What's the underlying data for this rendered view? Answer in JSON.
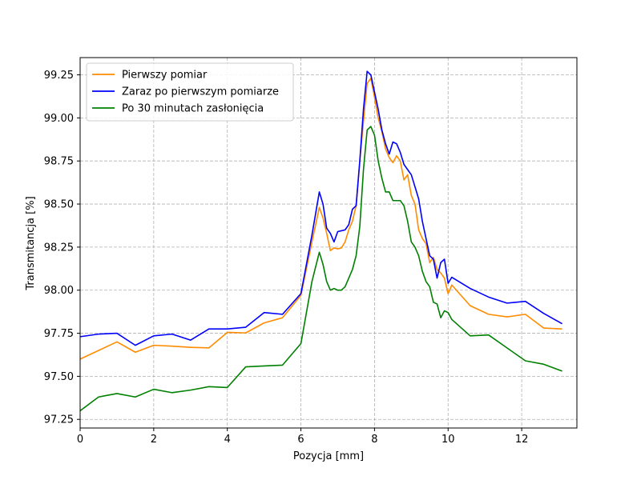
{
  "chart_data": {
    "type": "line",
    "xlabel": "Pozycja [mm]",
    "ylabel": "Transmitancja [%]",
    "xlim": [
      0,
      13.5
    ],
    "ylim": [
      97.2,
      99.35
    ],
    "xticks": [
      0,
      2,
      4,
      6,
      8,
      10,
      12
    ],
    "xtick_labels": [
      "0",
      "2",
      "4",
      "6",
      "8",
      "10",
      "12"
    ],
    "yticks": [
      97.25,
      97.5,
      97.75,
      98.0,
      98.25,
      98.5,
      98.75,
      99.0,
      99.25
    ],
    "ytick_labels": [
      "97.25",
      "97.50",
      "97.75",
      "98.00",
      "98.25",
      "98.50",
      "98.75",
      "99.00",
      "99.25"
    ],
    "grid": true,
    "legend_position": "top-left",
    "series": [
      {
        "name": "Pierwszy pomiar",
        "color": "#ff8c00",
        "x": [
          0,
          0.5,
          1.0,
          1.5,
          2.0,
          2.5,
          3.0,
          3.5,
          4.0,
          4.5,
          5.0,
          5.5,
          6.0,
          6.3,
          6.5,
          6.6,
          6.7,
          6.8,
          6.9,
          7.0,
          7.1,
          7.2,
          7.3,
          7.4,
          7.5,
          7.6,
          7.7,
          7.8,
          7.9,
          8.0,
          8.1,
          8.2,
          8.3,
          8.4,
          8.5,
          8.6,
          8.7,
          8.8,
          8.9,
          9.0,
          9.1,
          9.2,
          9.3,
          9.4,
          9.5,
          9.6,
          9.7,
          9.8,
          9.9,
          10.0,
          10.1,
          10.6,
          11.1,
          11.6,
          12.1,
          12.6,
          13.1
        ],
        "y": [
          97.6,
          97.65,
          97.7,
          97.64,
          97.68,
          97.675,
          97.668,
          97.665,
          97.755,
          97.752,
          97.81,
          97.84,
          97.97,
          98.28,
          98.48,
          98.42,
          98.33,
          98.23,
          98.245,
          98.24,
          98.245,
          98.28,
          98.35,
          98.4,
          98.49,
          98.75,
          98.98,
          99.2,
          99.23,
          99.12,
          99.0,
          98.92,
          98.82,
          98.77,
          98.74,
          98.78,
          98.75,
          98.64,
          98.67,
          98.55,
          98.5,
          98.35,
          98.3,
          98.27,
          98.16,
          98.19,
          98.12,
          98.1,
          98.07,
          97.98,
          98.03,
          97.91,
          97.86,
          97.845,
          97.86,
          97.78,
          97.775
        ]
      },
      {
        "name": "Zaraz po pierwszym pomiarze",
        "color": "#0000ff",
        "x": [
          0,
          0.5,
          1.0,
          1.5,
          2.0,
          2.5,
          3.0,
          3.5,
          4.0,
          4.5,
          5.0,
          5.5,
          6.0,
          6.3,
          6.5,
          6.6,
          6.7,
          6.8,
          6.9,
          7.0,
          7.1,
          7.2,
          7.3,
          7.4,
          7.5,
          7.6,
          7.7,
          7.8,
          7.9,
          8.0,
          8.1,
          8.2,
          8.3,
          8.4,
          8.5,
          8.6,
          8.7,
          8.8,
          8.9,
          9.0,
          9.1,
          9.2,
          9.3,
          9.4,
          9.5,
          9.6,
          9.7,
          9.8,
          9.9,
          10.0,
          10.1,
          10.6,
          11.1,
          11.6,
          12.1,
          12.6,
          13.1
        ],
        "y": [
          97.73,
          97.745,
          97.75,
          97.68,
          97.735,
          97.745,
          97.71,
          97.775,
          97.775,
          97.785,
          97.87,
          97.86,
          97.98,
          98.32,
          98.57,
          98.5,
          98.36,
          98.33,
          98.28,
          98.34,
          98.345,
          98.35,
          98.38,
          98.47,
          98.49,
          98.75,
          99.05,
          99.27,
          99.25,
          99.15,
          99.05,
          98.93,
          98.85,
          98.79,
          98.86,
          98.85,
          98.8,
          98.73,
          98.7,
          98.67,
          98.6,
          98.53,
          98.4,
          98.3,
          98.2,
          98.18,
          98.07,
          98.16,
          98.18,
          98.04,
          98.075,
          98.01,
          97.96,
          97.925,
          97.935,
          97.865,
          97.805
        ]
      },
      {
        "name": "Po 30 minutach zasłonięcia",
        "color": "#008000",
        "x": [
          0,
          0.5,
          1.0,
          1.5,
          2.0,
          2.5,
          3.0,
          3.5,
          4.0,
          4.5,
          5.0,
          5.5,
          6.0,
          6.3,
          6.5,
          6.6,
          6.7,
          6.8,
          6.9,
          7.0,
          7.1,
          7.2,
          7.3,
          7.4,
          7.5,
          7.6,
          7.7,
          7.8,
          7.9,
          8.0,
          8.1,
          8.2,
          8.3,
          8.4,
          8.5,
          8.6,
          8.7,
          8.8,
          8.9,
          9.0,
          9.1,
          9.2,
          9.3,
          9.4,
          9.5,
          9.6,
          9.7,
          9.8,
          9.9,
          10.0,
          10.1,
          10.6,
          11.1,
          11.6,
          12.1,
          12.6,
          13.1
        ],
        "y": [
          97.3,
          97.38,
          97.4,
          97.38,
          97.425,
          97.405,
          97.42,
          97.44,
          97.435,
          97.555,
          97.56,
          97.565,
          97.69,
          98.05,
          98.22,
          98.15,
          98.05,
          98.0,
          98.01,
          98.0,
          98.0,
          98.02,
          98.07,
          98.12,
          98.2,
          98.37,
          98.7,
          98.93,
          98.95,
          98.9,
          98.75,
          98.65,
          98.57,
          98.57,
          98.52,
          98.52,
          98.52,
          98.49,
          98.4,
          98.28,
          98.25,
          98.2,
          98.11,
          98.05,
          98.02,
          97.93,
          97.92,
          97.84,
          97.88,
          97.87,
          97.83,
          97.735,
          97.74,
          97.665,
          97.59,
          97.57,
          97.53
        ]
      }
    ]
  }
}
